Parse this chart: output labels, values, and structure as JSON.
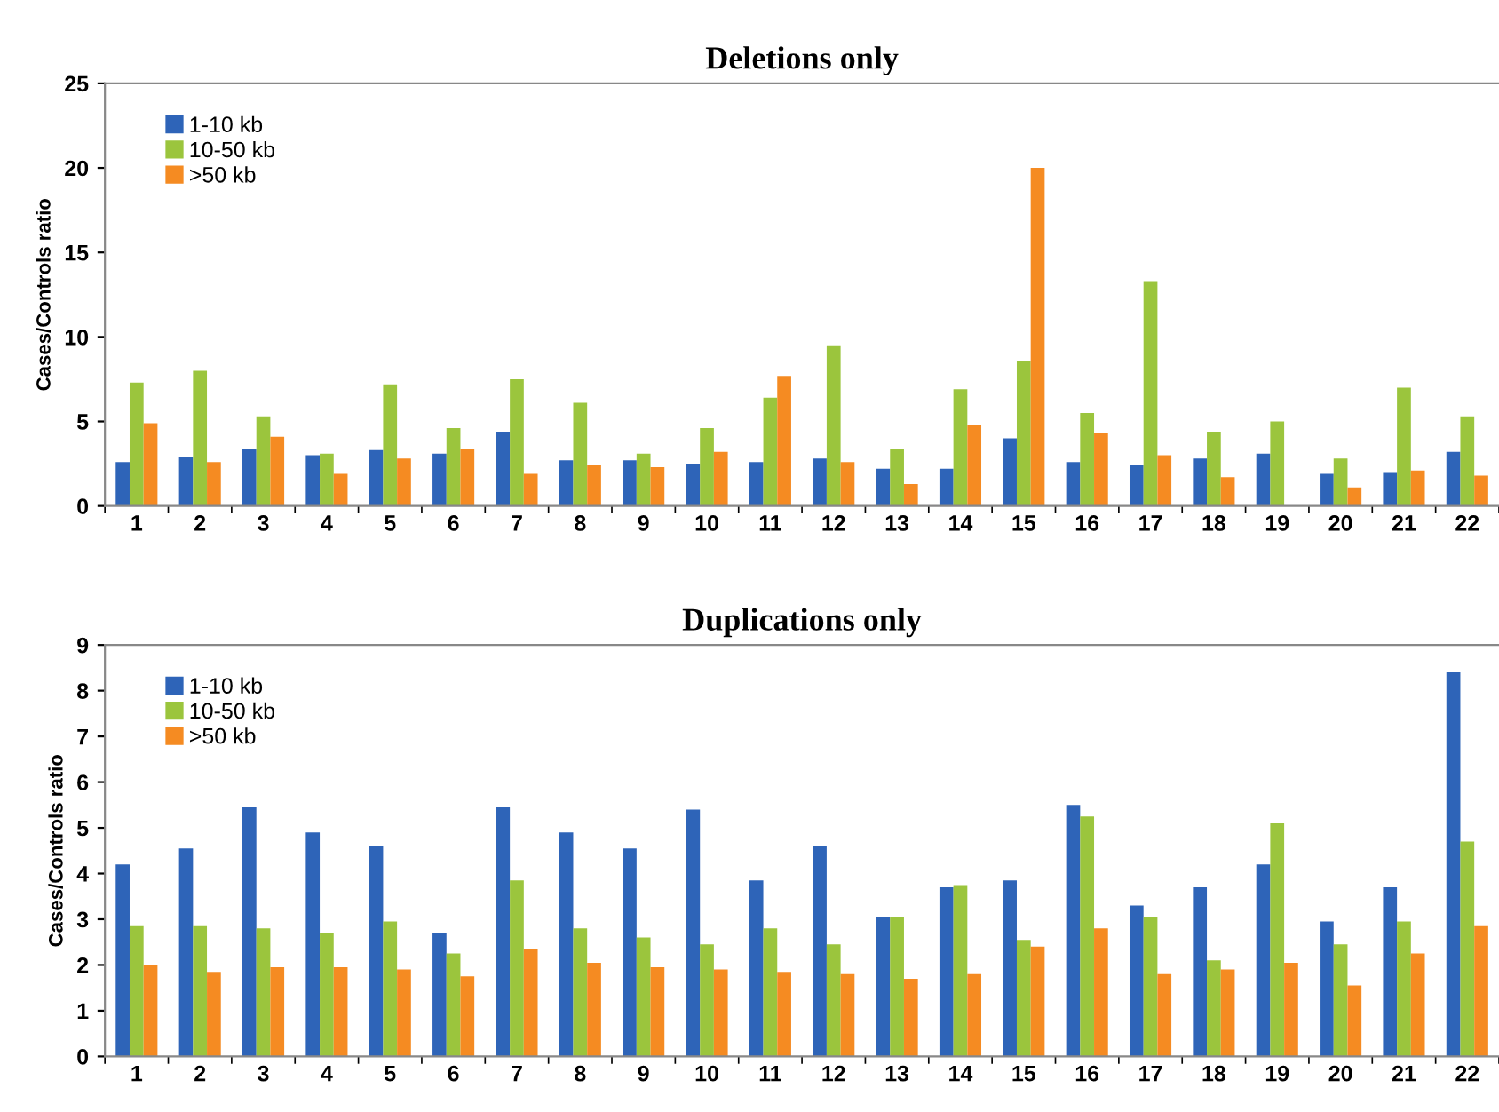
{
  "chart_data": [
    {
      "type": "bar",
      "title": "Deletions only",
      "ylabel": "Cases/Controls ratio",
      "categories": [
        "1",
        "2",
        "3",
        "4",
        "5",
        "6",
        "7",
        "8",
        "9",
        "10",
        "11",
        "12",
        "13",
        "14",
        "15",
        "16",
        "17",
        "18",
        "19",
        "20",
        "21",
        "22"
      ],
      "series": [
        {
          "name": "1-10 kb",
          "color": "#2e64b8",
          "values": [
            2.6,
            2.9,
            3.4,
            3.0,
            3.3,
            3.1,
            4.4,
            2.7,
            2.7,
            2.5,
            2.6,
            2.8,
            2.2,
            2.2,
            4.0,
            2.6,
            2.4,
            2.8,
            3.1,
            1.9,
            2.0,
            3.2
          ]
        },
        {
          "name": "10-50 kb",
          "color": "#9bc53d",
          "values": [
            7.3,
            8.0,
            5.3,
            3.1,
            7.2,
            4.6,
            7.5,
            6.1,
            3.1,
            4.6,
            6.4,
            9.5,
            3.4,
            6.9,
            8.6,
            5.5,
            13.3,
            4.4,
            5.0,
            2.8,
            7.0,
            5.3
          ]
        },
        {
          "name": ">50 kb",
          "color": "#f58b22",
          "values": [
            4.9,
            2.6,
            4.1,
            1.9,
            2.8,
            3.4,
            1.9,
            2.4,
            2.3,
            3.2,
            7.7,
            2.6,
            1.3,
            4.8,
            20.0,
            4.3,
            3.0,
            1.7,
            null,
            1.1,
            2.1,
            1.8
          ]
        }
      ],
      "ylim": [
        0,
        25
      ],
      "yticks": [
        0,
        5,
        10,
        15,
        20,
        25
      ],
      "grid": false,
      "legend": "top left"
    },
    {
      "type": "bar",
      "title": "Duplications only",
      "ylabel": "Cases/Controls ratio",
      "categories": [
        "1",
        "2",
        "3",
        "4",
        "5",
        "6",
        "7",
        "8",
        "9",
        "10",
        "11",
        "12",
        "13",
        "14",
        "15",
        "16",
        "17",
        "18",
        "19",
        "20",
        "21",
        "22"
      ],
      "series": [
        {
          "name": "1-10 kb",
          "color": "#2e64b8",
          "values": [
            4.2,
            4.55,
            5.45,
            4.9,
            4.6,
            2.7,
            5.45,
            4.9,
            4.55,
            5.4,
            3.85,
            4.6,
            3.05,
            3.7,
            3.85,
            5.5,
            3.3,
            3.7,
            4.2,
            2.95,
            3.7,
            8.4
          ]
        },
        {
          "name": "10-50 kb",
          "color": "#9bc53d",
          "values": [
            2.85,
            2.85,
            2.8,
            2.7,
            2.95,
            2.25,
            3.85,
            2.8,
            2.6,
            2.45,
            2.8,
            2.45,
            3.05,
            3.75,
            2.55,
            5.25,
            3.05,
            2.1,
            5.1,
            2.45,
            2.95,
            4.7
          ]
        },
        {
          "name": ">50 kb",
          "color": "#f58b22",
          "values": [
            2.0,
            1.85,
            1.95,
            1.95,
            1.9,
            1.75,
            2.35,
            2.05,
            1.95,
            1.9,
            1.85,
            1.8,
            1.7,
            1.8,
            2.4,
            2.8,
            1.8,
            1.9,
            2.05,
            1.55,
            2.25,
            2.85
          ]
        }
      ],
      "ylim": [
        0,
        9
      ],
      "yticks": [
        0,
        1,
        2,
        3,
        4,
        5,
        6,
        7,
        8,
        9
      ],
      "grid": false,
      "legend": "top left"
    }
  ]
}
